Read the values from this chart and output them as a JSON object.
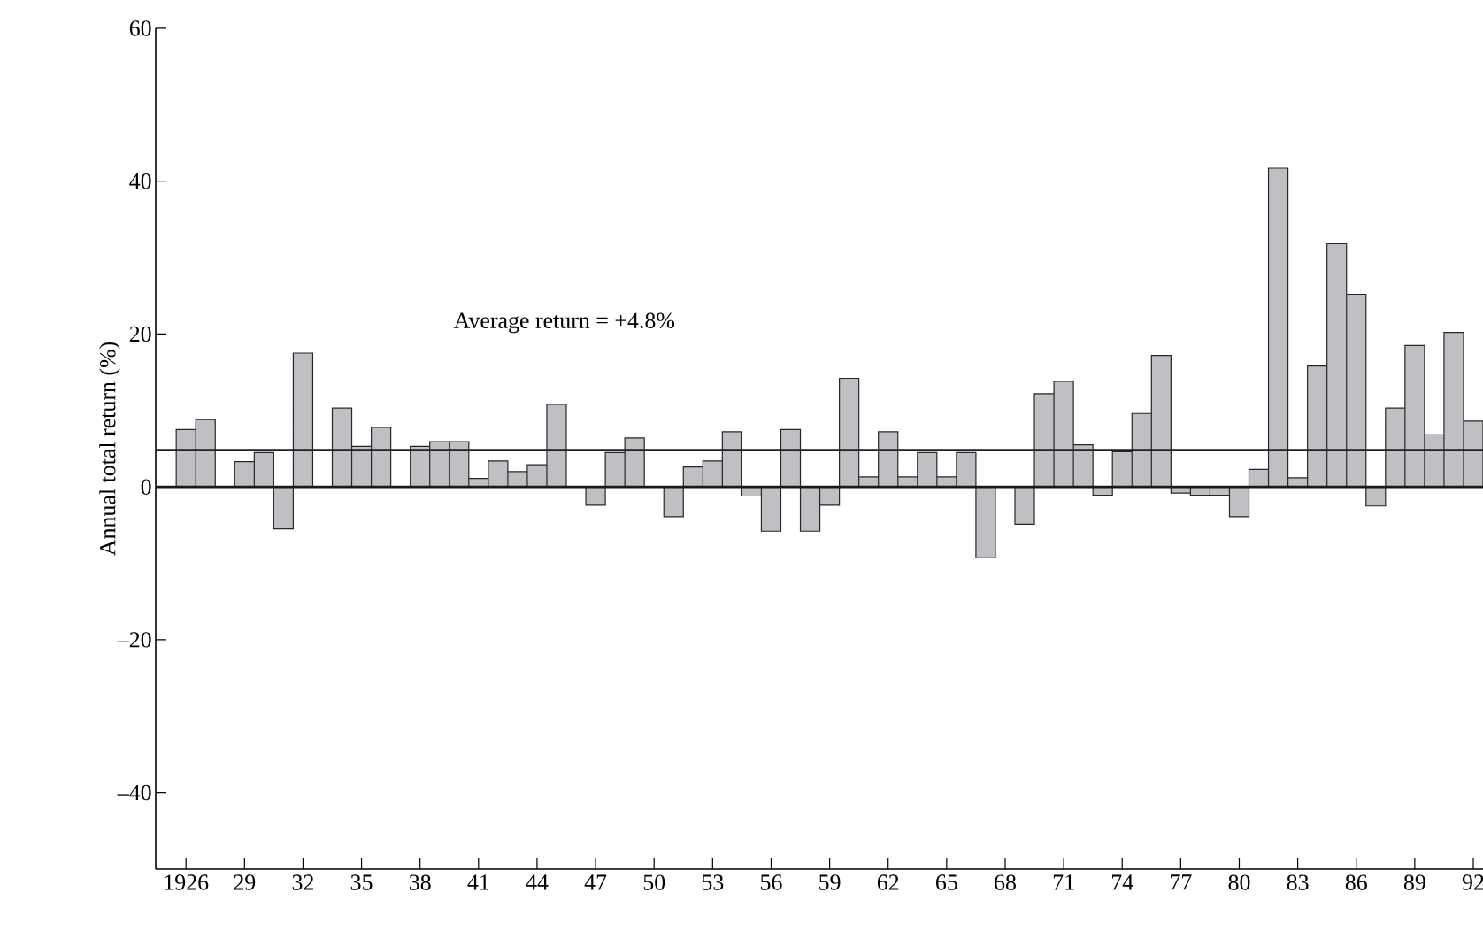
{
  "chart_data": {
    "type": "bar",
    "ylabel": "Annual total return (%)",
    "categories": [
      "1926",
      null,
      null,
      "29",
      null,
      null,
      "32",
      null,
      null,
      "35",
      null,
      null,
      "38",
      null,
      null,
      "41",
      null,
      null,
      "44",
      null,
      null,
      "47",
      null,
      null,
      "50",
      null,
      null,
      "53",
      null,
      null,
      "56",
      null,
      null,
      "59",
      null,
      null,
      "62",
      null,
      null,
      "65",
      null,
      null,
      "68",
      null,
      null,
      "71",
      null,
      null,
      "74",
      null,
      null,
      "77",
      null,
      null,
      "80",
      null,
      null,
      "83",
      null,
      null,
      "86",
      null,
      null,
      "89",
      null,
      null,
      "92"
    ],
    "values": [
      7.5,
      8.8,
      null,
      3.3,
      4.5,
      -5.5,
      17.5,
      null,
      10.3,
      5.3,
      7.8,
      null,
      5.3,
      5.9,
      5.9,
      1.1,
      3.4,
      2.0,
      2.9,
      10.8,
      null,
      -2.4,
      4.5,
      6.4,
      null,
      -3.9,
      2.6,
      3.4,
      7.2,
      -1.2,
      -5.8,
      7.5,
      -5.8,
      -2.4,
      14.2,
      1.3,
      7.2,
      1.3,
      4.5,
      1.3,
      4.5,
      -9.3,
      null,
      -4.9,
      12.2,
      13.8,
      5.5,
      -1.1,
      4.6,
      9.6,
      17.2,
      -0.8,
      -1.1,
      -1.1,
      -3.9,
      2.3,
      41.7,
      1.2,
      15.8,
      31.8,
      25.2,
      -2.5,
      10.3,
      18.5,
      6.8,
      20.2,
      8.6
    ],
    "color": "#bfc0c4",
    "ylim": [
      -50,
      60
    ],
    "yticks": [
      {
        "value": -40,
        "label": "–40"
      },
      {
        "value": -20,
        "label": "–20"
      },
      0,
      20,
      40,
      60
    ],
    "ref_lines": [
      {
        "axis": "y",
        "value": 4.8,
        "label": "Average return = +4.8%",
        "color": "#231f20"
      }
    ]
  }
}
